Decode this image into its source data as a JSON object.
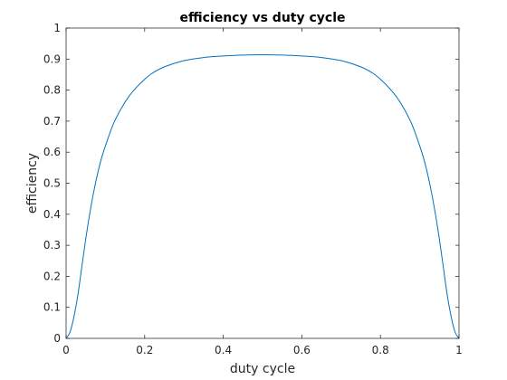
{
  "chart_data": {
    "type": "line",
    "title": "efficiency vs duty cycle",
    "xlabel": "duty cycle",
    "ylabel": "efficiency",
    "xlim": [
      0,
      1
    ],
    "ylim": [
      0,
      1
    ],
    "grid": false,
    "legend": "none",
    "xticks": [
      0,
      0.2,
      0.4,
      0.6,
      0.8,
      1
    ],
    "xtick_labels": [
      "0",
      "0.2",
      "0.4",
      "0.6",
      "0.8",
      "1"
    ],
    "yticks": [
      0,
      0.1,
      0.2,
      0.3,
      0.4,
      0.5,
      0.6,
      0.7,
      0.8,
      0.9,
      1
    ],
    "ytick_labels": [
      "0",
      "0.1",
      "0.2",
      "0.3",
      "0.4",
      "0.5",
      "0.6",
      "0.7",
      "0.8",
      "0.9",
      "1"
    ],
    "series": [
      {
        "color": "#0072bd",
        "x": [
          0,
          0.01,
          0.02,
          0.03,
          0.04,
          0.05,
          0.06,
          0.07,
          0.08,
          0.09,
          0.1,
          0.12,
          0.14,
          0.16,
          0.18,
          0.2,
          0.22,
          0.25,
          0.3,
          0.35,
          0.4,
          0.45,
          0.5,
          0.55,
          0.6,
          0.65,
          0.7,
          0.75,
          0.78,
          0.8,
          0.82,
          0.84,
          0.86,
          0.88,
          0.9,
          0.91,
          0.92,
          0.93,
          0.94,
          0.95,
          0.96,
          0.97,
          0.98,
          0.99,
          1
        ],
        "y": [
          0,
          0.02,
          0.07,
          0.14,
          0.23,
          0.32,
          0.4,
          0.47,
          0.53,
          0.58,
          0.62,
          0.69,
          0.74,
          0.78,
          0.81,
          0.835,
          0.855,
          0.875,
          0.895,
          0.905,
          0.91,
          0.913,
          0.914,
          0.913,
          0.91,
          0.905,
          0.895,
          0.875,
          0.855,
          0.835,
          0.81,
          0.78,
          0.74,
          0.69,
          0.62,
          0.58,
          0.53,
          0.47,
          0.4,
          0.32,
          0.23,
          0.14,
          0.07,
          0.02,
          0
        ]
      }
    ]
  }
}
